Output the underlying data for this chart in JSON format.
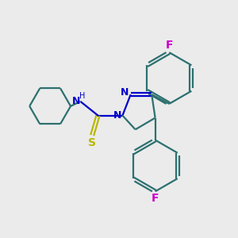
{
  "bg_color": "#ebebeb",
  "bond_color": "#2d7070",
  "N_color": "#0000cc",
  "S_color": "#b8b800",
  "F_color": "#cc00cc",
  "line_width": 1.6,
  "figsize": [
    3.0,
    3.0
  ],
  "dpi": 100,
  "xlim": [
    0,
    10
  ],
  "ylim": [
    0,
    10
  ]
}
